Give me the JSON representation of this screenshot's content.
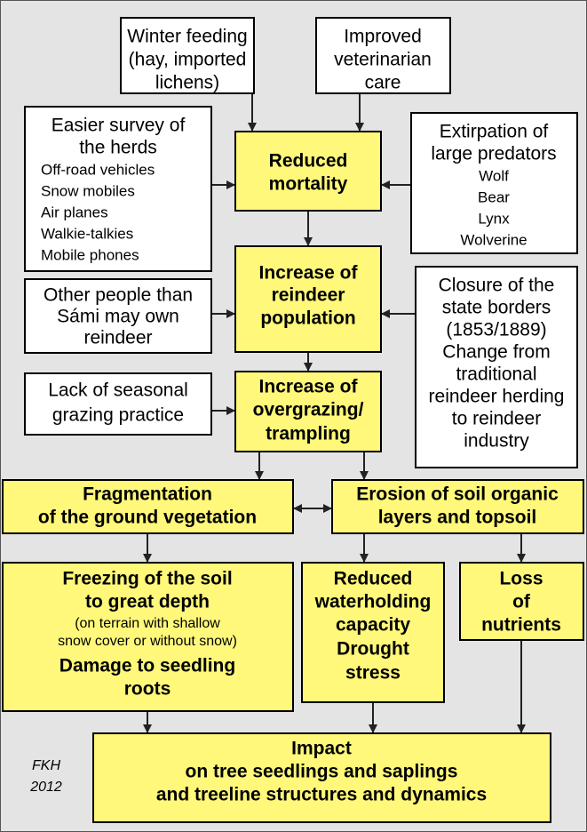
{
  "nodes": [
    {
      "lines": [
        "Winter feeding",
        "(hay, imported",
        "lichens)"
      ]
    },
    {
      "lines": [
        "Improved",
        "veterinarian",
        "care"
      ]
    },
    {
      "lines": [
        "Easier survey of",
        "the herds",
        "Off-road vehicles",
        "Snow mobiles",
        "Air planes",
        "Walkie-talkies",
        "Mobile phones"
      ]
    },
    {
      "lines": [
        "Reduced",
        "mortality"
      ]
    },
    {
      "lines": [
        "Extirpation of",
        "large predators",
        "Wolf",
        "Bear",
        "Lynx",
        "Wolverine"
      ]
    },
    {
      "lines": [
        "Increase of",
        "reindeer",
        "population"
      ]
    },
    {
      "lines": [
        "Other people than",
        "Sámi may own",
        "reindeer"
      ]
    },
    {
      "lines": [
        "Closure of the",
        "state borders",
        "(1853/1889)",
        "Change from",
        "traditional",
        "reindeer herding",
        "to reindeer",
        "industry"
      ]
    },
    {
      "lines": [
        "Lack of seasonal",
        "grazing practice"
      ]
    },
    {
      "lines": [
        "Increase of",
        "overgrazing/",
        "trampling"
      ]
    },
    {
      "lines": [
        "Fragmentation",
        "of the ground vegetation"
      ]
    },
    {
      "lines": [
        "Erosion of soil organic",
        "layers and topsoil"
      ]
    },
    {
      "lines": [
        "Freezing of the soil",
        "to great depth",
        "(on terrain with shallow",
        "snow cover or without snow)",
        "Damage to seedling",
        "roots"
      ]
    },
    {
      "lines": [
        "Reduced",
        "waterholding",
        "capacity",
        "Drought",
        "stress"
      ]
    },
    {
      "lines": [
        "Loss",
        "of",
        "nutrients"
      ]
    },
    {
      "lines": [
        "Impact",
        "on tree seedlings and saplings",
        "and treeline structures and dynamics"
      ]
    }
  ],
  "credit": [
    "FKH",
    "2012"
  ]
}
